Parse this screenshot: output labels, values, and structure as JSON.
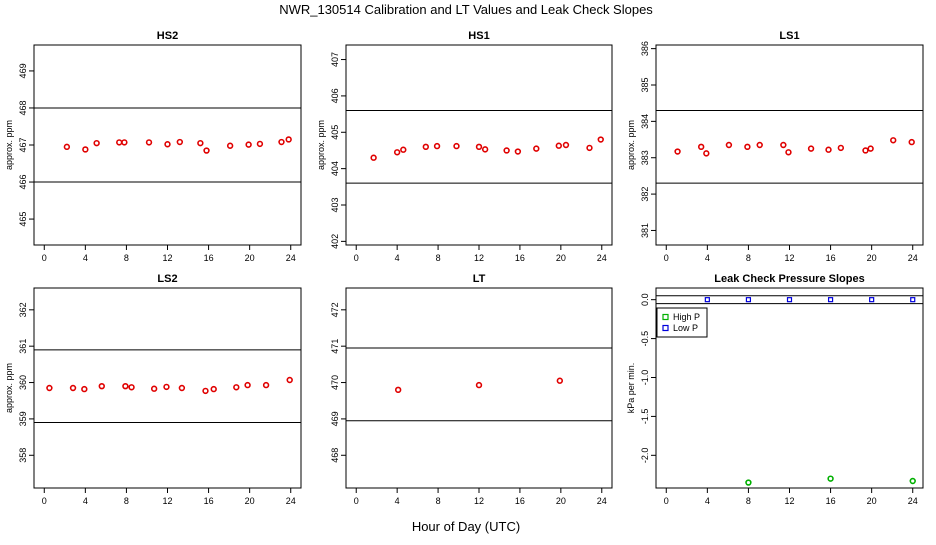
{
  "title": "NWR_130514  Calibration and LT Values and Leak Check Slopes",
  "xlabel": "Hour of Day (UTC)",
  "colors": {
    "calib": "#e00000",
    "high_p": "#00b000",
    "low_p": "#0000dd",
    "ref_line": "#000000"
  },
  "chart_data": [
    {
      "type": "scatter",
      "title": "HS2",
      "ylabel": "approx. ppm",
      "xlim": [
        -1,
        25
      ],
      "ylim": [
        464.3,
        469.7
      ],
      "xticks": [
        0,
        4,
        8,
        12,
        16,
        20,
        24
      ],
      "yticks": [
        465,
        466,
        467,
        468,
        469
      ],
      "ref_lines": [
        466.0,
        468.0
      ],
      "series": [
        {
          "color_key": "calib",
          "marker": "circle",
          "x": [
            2.2,
            4.0,
            5.1,
            7.3,
            7.8,
            10.2,
            12.0,
            13.2,
            15.2,
            15.8,
            18.1,
            19.9,
            21.0,
            23.1,
            23.8
          ],
          "y": [
            466.95,
            466.88,
            467.05,
            467.07,
            467.07,
            467.07,
            467.02,
            467.08,
            467.05,
            466.85,
            466.98,
            467.01,
            467.03,
            467.08,
            467.15
          ]
        }
      ]
    },
    {
      "type": "scatter",
      "title": "HS1",
      "ylabel": "approx. ppm",
      "xlim": [
        -1,
        25
      ],
      "ylim": [
        401.9,
        407.4
      ],
      "xticks": [
        0,
        4,
        8,
        12,
        16,
        20,
        24
      ],
      "yticks": [
        402,
        403,
        404,
        405,
        406,
        407
      ],
      "ref_lines": [
        403.6,
        405.6
      ],
      "series": [
        {
          "color_key": "calib",
          "marker": "circle",
          "x": [
            1.7,
            4.0,
            4.6,
            6.8,
            7.9,
            9.8,
            12.0,
            12.6,
            14.7,
            15.8,
            17.6,
            19.8,
            20.5,
            22.8,
            23.9
          ],
          "y": [
            404.3,
            404.45,
            404.52,
            404.6,
            404.62,
            404.62,
            404.6,
            404.53,
            404.5,
            404.47,
            404.55,
            404.63,
            404.65,
            404.57,
            404.8
          ]
        }
      ]
    },
    {
      "type": "scatter",
      "title": "LS1",
      "ylabel": "approx. ppm",
      "xlim": [
        -1,
        25
      ],
      "ylim": [
        380.6,
        386.1
      ],
      "xticks": [
        0,
        4,
        8,
        12,
        16,
        20,
        24
      ],
      "yticks": [
        381,
        382,
        383,
        384,
        385,
        386
      ],
      "ref_lines": [
        382.3,
        384.3
      ],
      "series": [
        {
          "color_key": "calib",
          "marker": "circle",
          "x": [
            1.1,
            3.4,
            3.9,
            6.1,
            7.9,
            9.1,
            11.4,
            11.9,
            14.1,
            15.8,
            17.0,
            19.4,
            19.9,
            22.1,
            23.9
          ],
          "y": [
            383.17,
            383.3,
            383.12,
            383.35,
            383.3,
            383.35,
            383.35,
            383.15,
            383.25,
            383.22,
            383.27,
            383.2,
            383.25,
            383.48,
            383.43
          ]
        }
      ]
    },
    {
      "type": "scatter",
      "title": "LS2",
      "ylabel": "approx. ppm",
      "xlim": [
        -1,
        25
      ],
      "ylim": [
        357.1,
        362.6
      ],
      "xticks": [
        0,
        4,
        8,
        12,
        16,
        20,
        24
      ],
      "yticks": [
        358,
        359,
        360,
        361,
        362
      ],
      "ref_lines": [
        358.9,
        360.9
      ],
      "series": [
        {
          "color_key": "calib",
          "marker": "circle",
          "x": [
            0.5,
            2.8,
            3.9,
            5.6,
            7.9,
            8.5,
            10.7,
            11.9,
            13.4,
            15.7,
            16.5,
            18.7,
            19.8,
            21.6,
            23.9
          ],
          "y": [
            359.85,
            359.85,
            359.82,
            359.9,
            359.9,
            359.87,
            359.83,
            359.88,
            359.85,
            359.77,
            359.82,
            359.87,
            359.93,
            359.93,
            360.07
          ]
        }
      ]
    },
    {
      "type": "scatter",
      "title": "LT",
      "ylabel": "",
      "xlim": [
        -1,
        25
      ],
      "ylim": [
        467.1,
        472.6
      ],
      "xticks": [
        0,
        4,
        8,
        12,
        16,
        20,
        24
      ],
      "yticks": [
        468,
        469,
        470,
        471,
        472
      ],
      "ref_lines": [
        468.95,
        470.95
      ],
      "series": [
        {
          "color_key": "calib",
          "marker": "circle",
          "x": [
            4.1,
            12.0,
            19.9
          ],
          "y": [
            469.8,
            469.93,
            470.05
          ]
        }
      ]
    },
    {
      "type": "scatter",
      "title": "Leak Check Pressure Slopes",
      "ylabel": "kPa per min.",
      "xlim": [
        -1,
        25
      ],
      "ylim": [
        -2.42,
        0.15
      ],
      "xticks": [
        0,
        4,
        8,
        12,
        16,
        20,
        24
      ],
      "ytick_labels": [
        "0.0",
        "-0.5",
        "-1.0",
        "-1.5",
        "-2.0"
      ],
      "yticks": [
        0.0,
        -0.5,
        -1.0,
        -1.5,
        -2.0
      ],
      "ref_lines": [
        0.05,
        -0.05
      ],
      "legend": {
        "placement": "top-left",
        "entries": [
          {
            "label": "High P",
            "color_key": "high_p"
          },
          {
            "label": "Low P",
            "color_key": "low_p"
          }
        ]
      },
      "series": [
        {
          "name": "High P",
          "color_key": "high_p",
          "marker": "circle",
          "x": [
            8.0,
            16.0,
            24.0
          ],
          "y": [
            -2.35,
            -2.3,
            -2.33
          ]
        },
        {
          "name": "Low P",
          "color_key": "low_p",
          "marker": "square",
          "x": [
            4.0,
            8.0,
            12.0,
            16.0,
            20.0,
            24.0
          ],
          "y": [
            0.0,
            0.0,
            0.0,
            0.0,
            0.0,
            0.0
          ]
        }
      ]
    }
  ]
}
